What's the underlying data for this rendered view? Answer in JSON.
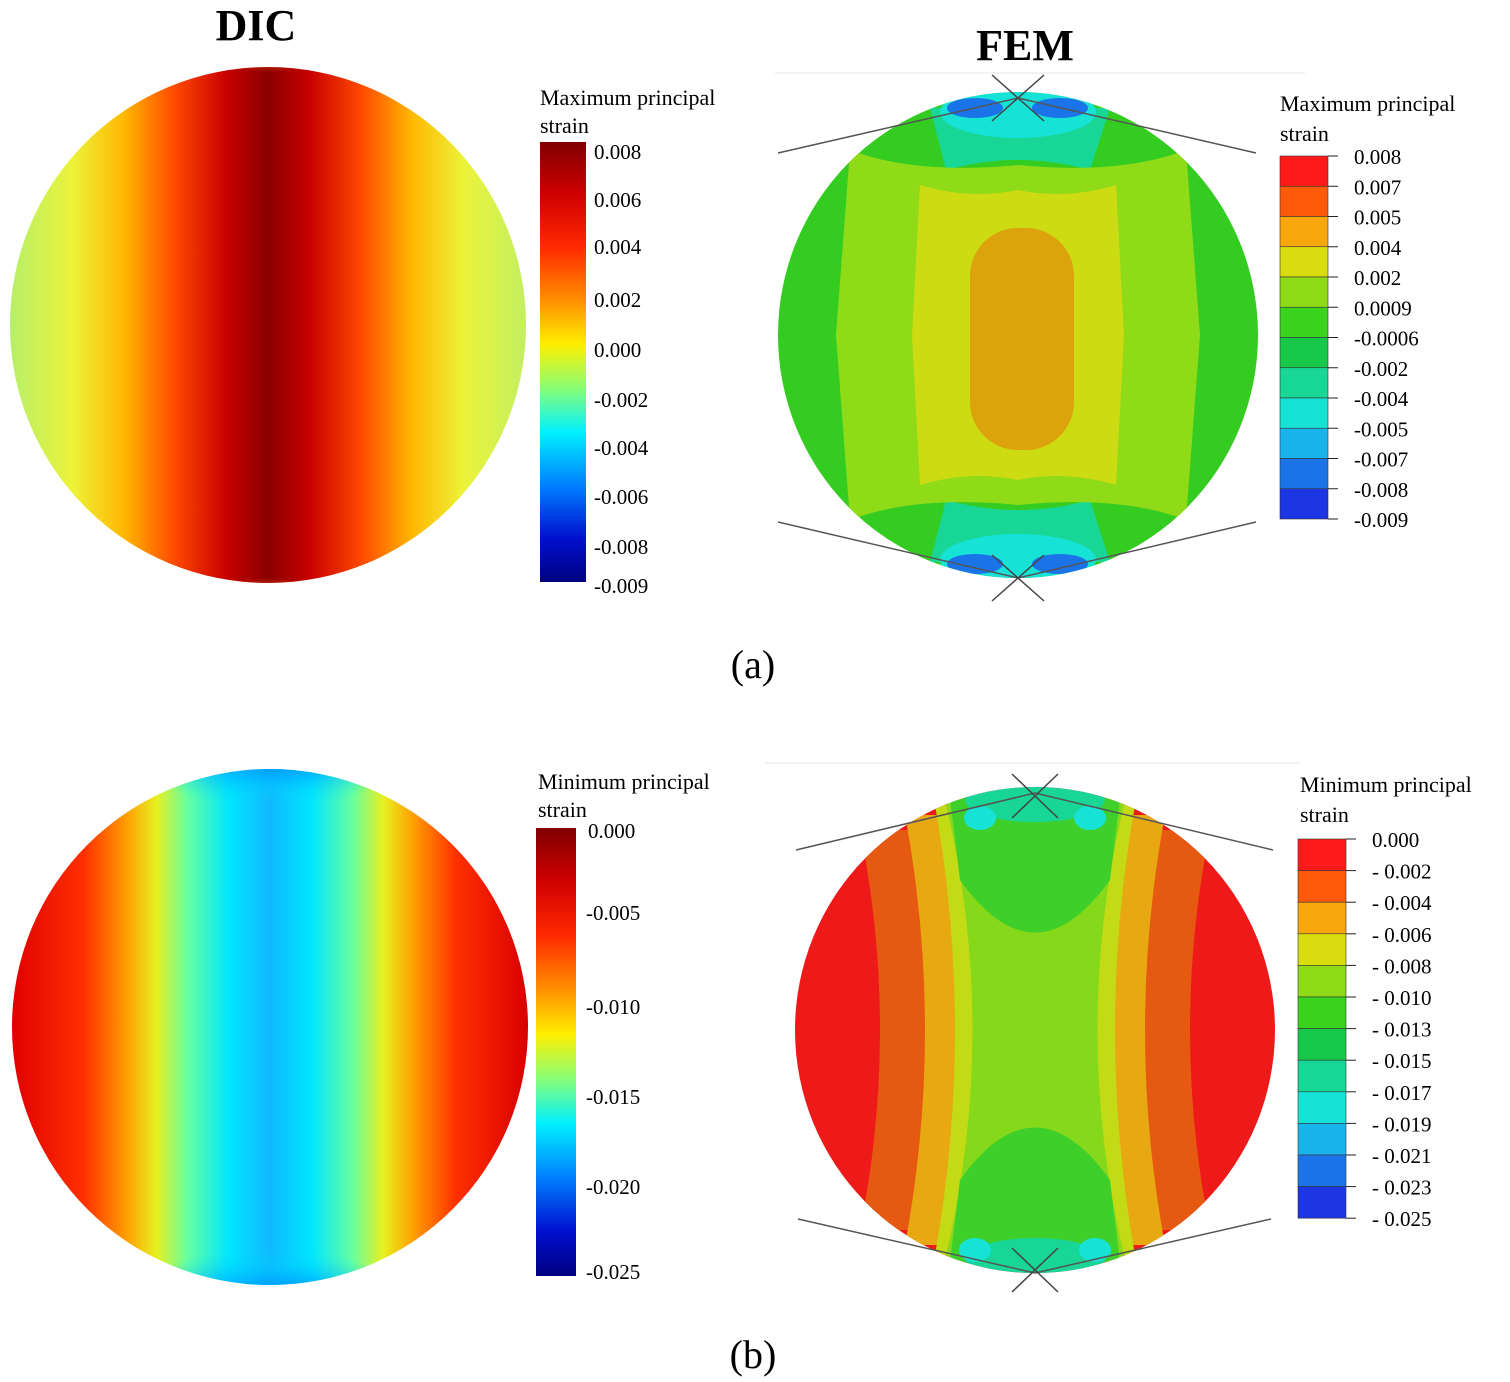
{
  "titles": {
    "left": "DIC",
    "right": "FEM"
  },
  "panel_labels": {
    "a": "(a)",
    "b": "(b)"
  },
  "a": {
    "dic_legend": {
      "title_line1": "Maximum principal",
      "title_line2": "strain",
      "ticks": [
        "0.008",
        "0.006",
        "0.004",
        "0.002",
        "0.000",
        "-0.002",
        "-0.004",
        "-0.006",
        "-0.008",
        "-0.009"
      ]
    },
    "fem_legend": {
      "title_line1": "Maximum principal",
      "title_line2": "strain",
      "ticks": [
        "0.008",
        "0.007",
        "0.005",
        "0.004",
        "0.002",
        "0.0009",
        "-0.0006",
        "-0.002",
        "-0.004",
        "-0.005",
        "-0.007",
        "-0.008",
        "-0.009"
      ],
      "colors": [
        "#ff1a1a",
        "#ff5a0a",
        "#f7a60c",
        "#d9dd10",
        "#8fdb18",
        "#3ad41e",
        "#18c848",
        "#18d695",
        "#16e2d6",
        "#1ab4ec",
        "#1a74e8",
        "#1b36e2"
      ]
    }
  },
  "b": {
    "dic_legend": {
      "title_line1": "Minimum principal",
      "title_line2": "strain",
      "ticks": [
        "0.000",
        "-0.005",
        "-0.010",
        "-0.015",
        "-0.020",
        "-0.025"
      ]
    },
    "fem_legend": {
      "title_line1": "Minimum principal",
      "title_line2": "strain",
      "ticks": [
        "0.000",
        "- 0.002",
        "- 0.004",
        "- 0.006",
        "- 0.008",
        "- 0.010",
        "- 0.013",
        "- 0.015",
        "- 0.017",
        "- 0.019",
        "- 0.021",
        "- 0.023",
        "- 0.025"
      ],
      "colors": [
        "#ff1a1a",
        "#ff5a0a",
        "#f7a60c",
        "#d9dd10",
        "#8fdb18",
        "#3ad41e",
        "#18c848",
        "#18d695",
        "#16e2d6",
        "#1ab4ec",
        "#1a74e8",
        "#1b36e2"
      ]
    }
  }
}
